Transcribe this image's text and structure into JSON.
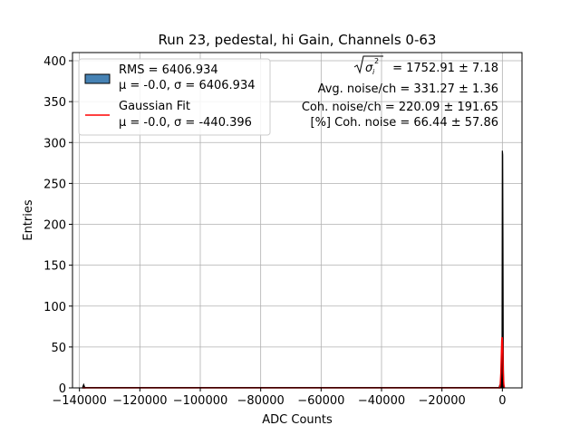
{
  "chart_data": {
    "type": "histogram",
    "title": "Run 23, pedestal, hi Gain, Channels 0-63",
    "xlabel": "ADC Counts",
    "ylabel": "Entries",
    "xlim": [
      -142300,
      6500
    ],
    "ylim": [
      0,
      410
    ],
    "grid": true,
    "xticks": [
      -140000,
      -120000,
      -100000,
      -80000,
      -60000,
      -40000,
      -20000,
      0
    ],
    "xtick_labels": [
      "−140000",
      "−120000",
      "−100000",
      "−80000",
      "−60000",
      "−40000",
      "−20000",
      "0"
    ],
    "yticks": [
      0,
      50,
      100,
      150,
      200,
      250,
      300,
      350,
      400
    ],
    "ytick_labels": [
      "0",
      "50",
      "100",
      "150",
      "200",
      "250",
      "300",
      "350",
      "400"
    ],
    "histogram": {
      "x": [
        -139000,
        -138600,
        -138200,
        -1000,
        -500,
        -300,
        -100,
        0,
        100,
        200,
        300,
        400,
        500
      ],
      "values": [
        0,
        4,
        0,
        2,
        6,
        15,
        60,
        290,
        285,
        175,
        40,
        10,
        0
      ],
      "fill": "#000000"
    },
    "gaussian_fit": {
      "x": [
        -900,
        -700,
        -500,
        -300,
        -200,
        -100,
        0,
        100,
        200,
        300,
        500,
        700
      ],
      "values": [
        0,
        4,
        18,
        45,
        58,
        62,
        60,
        50,
        35,
        18,
        4,
        0
      ],
      "color": "#ff0000"
    },
    "legend": {
      "position": "upper-left",
      "entries": [
        {
          "line1": "RMS = 6406.934",
          "line2": "μ = -0.0, σ = 6406.934",
          "swatch": "patch",
          "color": "#4682b4"
        },
        {
          "line1": "Gaussian Fit",
          "line2": "μ = -0.0, σ = -440.396",
          "swatch": "line",
          "color": "#ff0000"
        }
      ]
    },
    "annotations": [
      {
        "text": " = 1752.91 ± 7.18",
        "sqrt_symbol": "σᵢ²"
      },
      {
        "text": "Avg. noise/ch = 331.27 ± 1.36"
      },
      {
        "text": "Coh. noise/ch = 220.09 ± 191.65"
      },
      {
        "text": "[%] Coh. noise = 66.44 ± 57.86"
      }
    ]
  }
}
